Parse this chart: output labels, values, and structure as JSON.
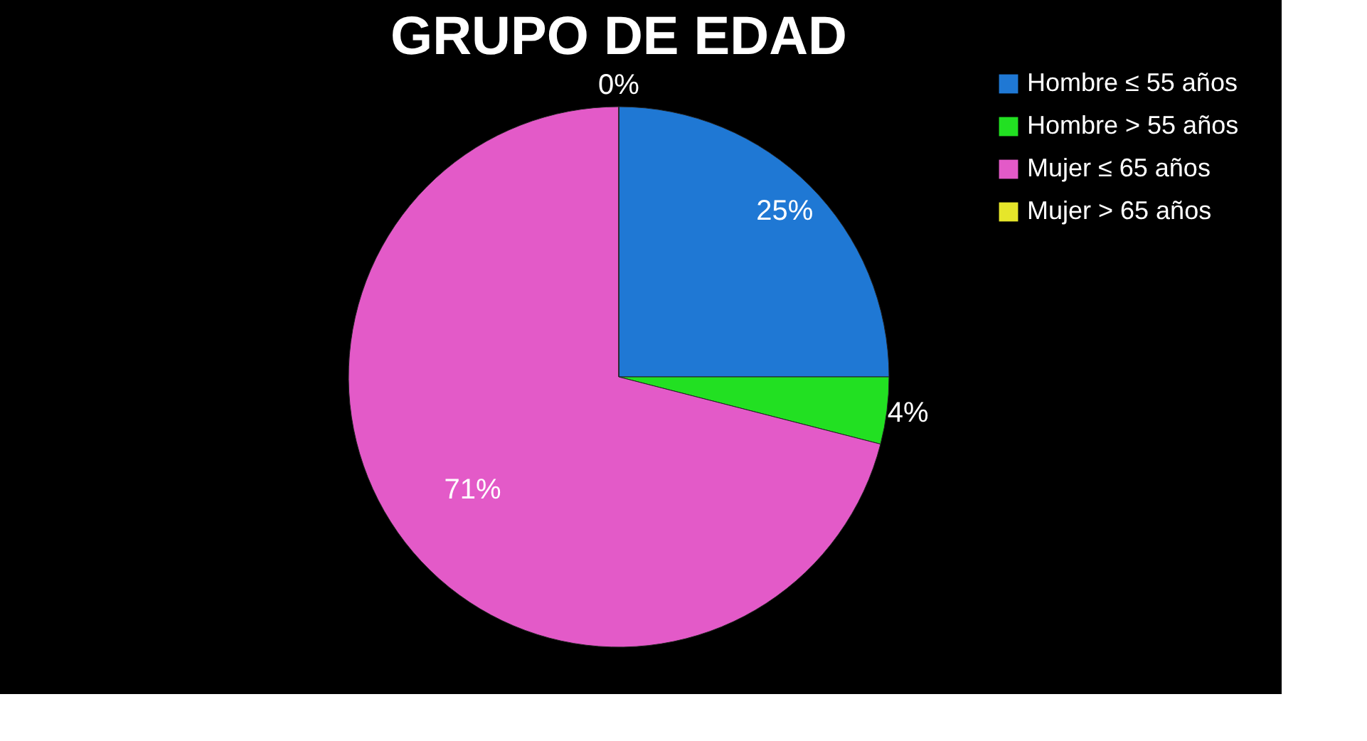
{
  "chart_data": {
    "type": "pie",
    "title": "GRUPO DE EDAD",
    "categories": [
      "Hombre ≤ 55 años",
      "Hombre > 55 años",
      "Mujer ≤ 65 años",
      "Mujer > 65 años"
    ],
    "values": [
      25,
      4,
      71,
      0
    ],
    "colors": [
      "#1f78d4",
      "#22e022",
      "#e35ac8",
      "#e6e62a"
    ],
    "value_labels": [
      "25%",
      "4%",
      "71%",
      "0%"
    ],
    "legend": "right"
  }
}
